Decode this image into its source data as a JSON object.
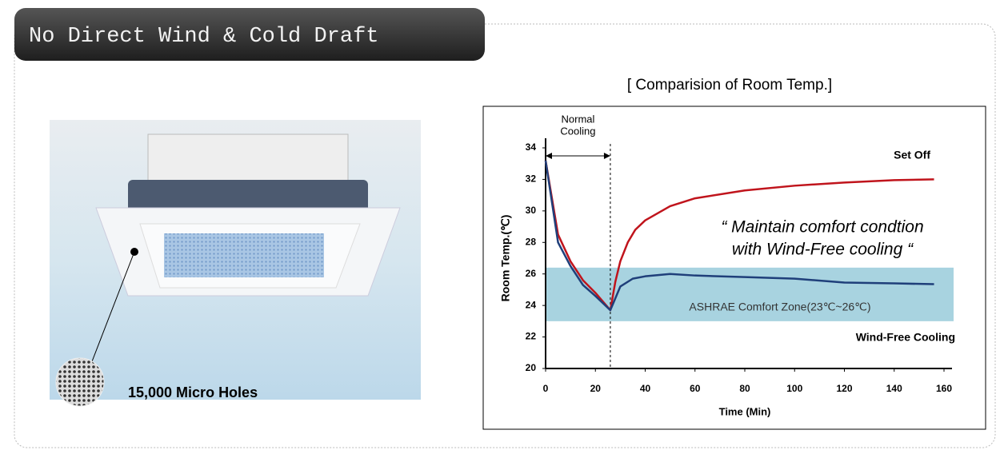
{
  "header": {
    "title": "No Direct Wind & Cold Draft"
  },
  "photo": {
    "caption": "15,000 Micro Holes"
  },
  "chart_data": {
    "type": "line",
    "title": "[ Comparision of  Room Temp.]",
    "x_label": "Time (Min)",
    "y_label": "Room Temp.(℃)",
    "xlim": [
      0,
      160
    ],
    "ylim": [
      20,
      34
    ],
    "xticks": [
      0,
      20,
      40,
      60,
      80,
      100,
      120,
      140,
      160
    ],
    "yticks": [
      20,
      22,
      24,
      26,
      28,
      30,
      32,
      34
    ],
    "series": [
      {
        "name": "Set Off",
        "color": "#c0141c",
        "x": [
          0,
          5,
          10,
          15,
          20,
          26,
          28,
          30,
          33,
          36,
          40,
          50,
          60,
          80,
          100,
          120,
          140,
          156
        ],
        "values": [
          33.2,
          28.5,
          26.8,
          25.6,
          24.8,
          23.7,
          25.5,
          26.8,
          28.0,
          28.8,
          29.4,
          30.3,
          30.8,
          31.3,
          31.6,
          31.8,
          31.95,
          32.0
        ]
      },
      {
        "name": "Wind-Free Cooling",
        "color": "#1f3f7a",
        "x": [
          0,
          5,
          10,
          15,
          20,
          26,
          30,
          35,
          40,
          50,
          60,
          80,
          100,
          120,
          140,
          156
        ],
        "values": [
          33.2,
          28.0,
          26.5,
          25.3,
          24.6,
          23.7,
          25.2,
          25.7,
          25.85,
          26.0,
          25.9,
          25.8,
          25.7,
          25.45,
          25.4,
          25.35
        ]
      }
    ],
    "normal_cooling": {
      "label": [
        "Normal",
        "Cooling"
      ],
      "x": 26
    },
    "comfort_zone": {
      "label": "ASHRAE Comfort Zone(23℃~26℃)",
      "range": [
        23,
        26.4
      ]
    },
    "annotation": [
      "“ Maintain comfort condtion",
      "with Wind-Free cooling “"
    ]
  }
}
